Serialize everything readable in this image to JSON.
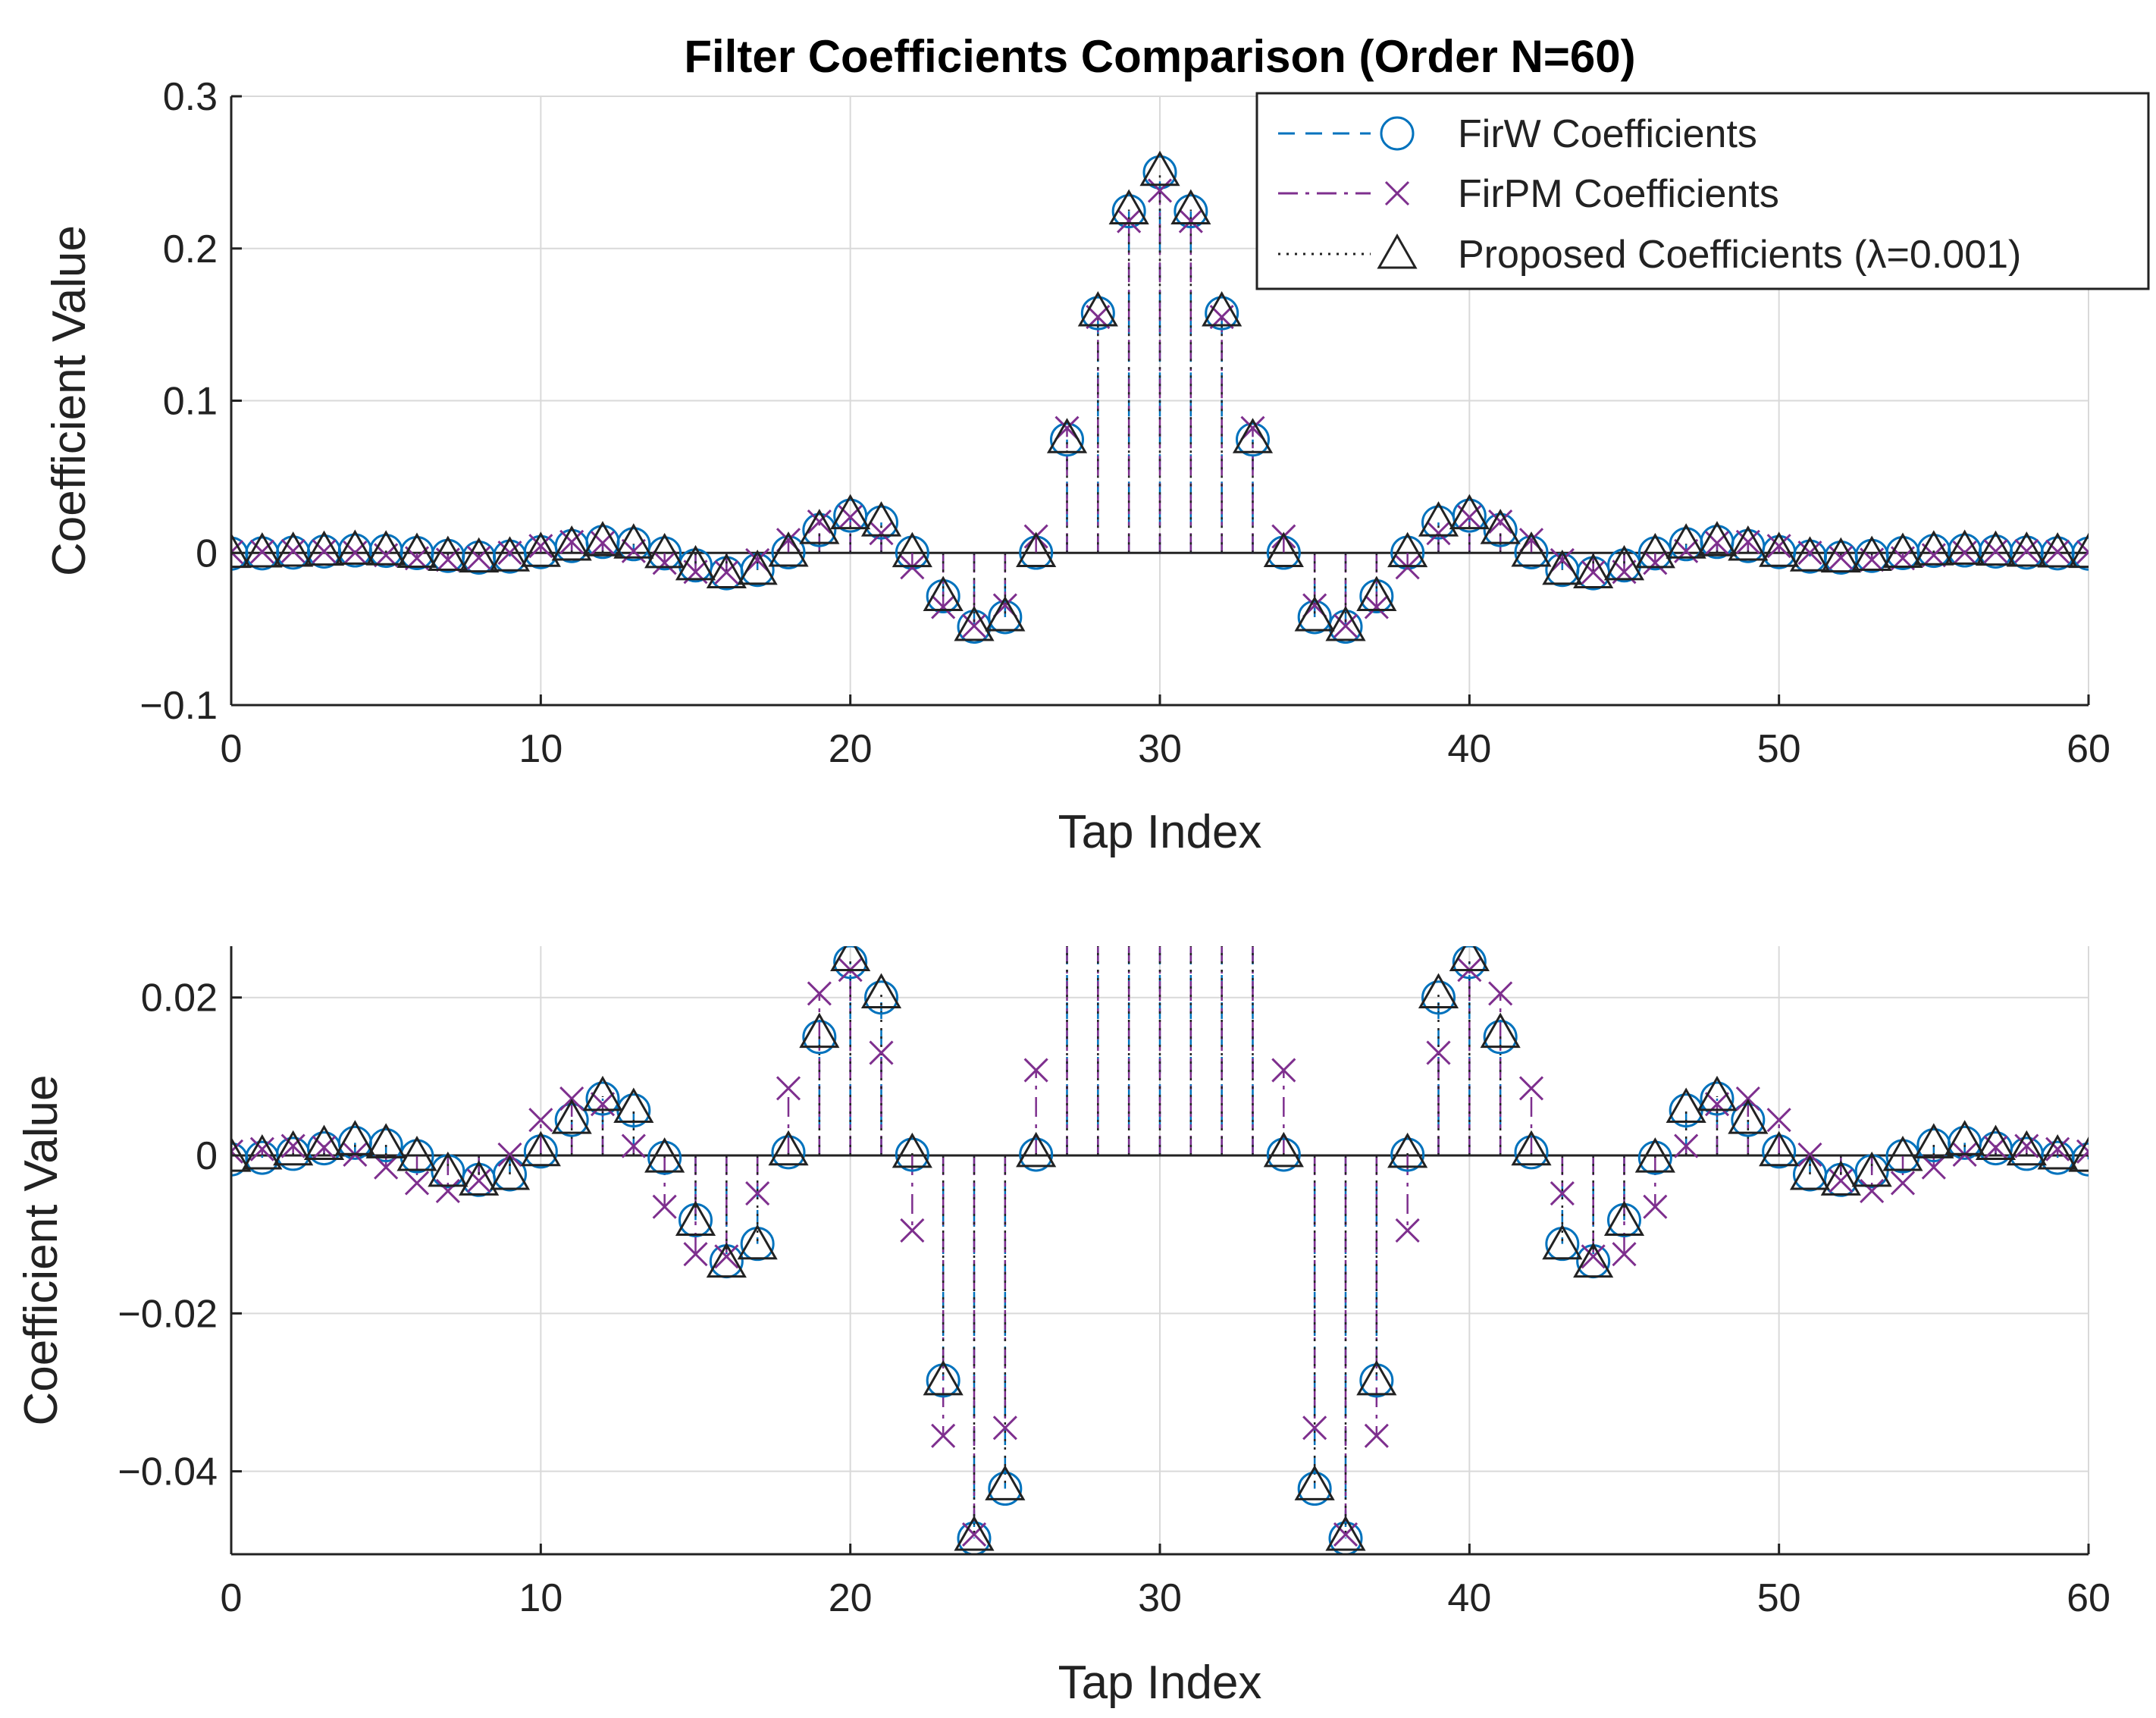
{
  "chart_data": {
    "type": "stem",
    "title": "Filter Coefficients Comparison (Order N=60)",
    "series_styles": [
      {
        "name": "FirW Coefficients",
        "color": "#0072BD",
        "marker": "circle",
        "line": "dashed"
      },
      {
        "name": "FirPM Coefficients",
        "color": "#7E2F8E",
        "marker": "x",
        "line": "dash-dot"
      },
      {
        "name": "Proposed Coefficients (λ=0.001)",
        "color": "#222222",
        "marker": "triangle",
        "line": "dotted"
      }
    ],
    "legend": {
      "placement": "top-right",
      "items": [
        "FirW Coefficients",
        "FirPM Coefficients",
        "Proposed Coefficients (λ=0.001)"
      ]
    },
    "x": [
      0,
      1,
      2,
      3,
      4,
      5,
      6,
      7,
      8,
      9,
      10,
      11,
      12,
      13,
      14,
      15,
      16,
      17,
      18,
      19,
      20,
      21,
      22,
      23,
      24,
      25,
      26,
      27,
      28,
      29,
      30,
      31,
      32,
      33,
      34,
      35,
      36,
      37,
      38,
      39,
      40,
      41,
      42,
      43,
      44,
      45,
      46,
      47,
      48,
      49,
      50,
      51,
      52,
      53,
      54,
      55,
      56,
      57,
      58,
      59,
      60
    ],
    "series": [
      {
        "name": "FirW Coefficients",
        "values": [
          -0.0005,
          -0.0003,
          0.0002,
          0.0009,
          0.0016,
          0.0013,
          -0.0001,
          -0.002,
          -0.0031,
          -0.0024,
          0.0005,
          0.0045,
          0.0072,
          0.0057,
          -0.0003,
          -0.0082,
          -0.0134,
          -0.0112,
          0.0004,
          0.015,
          0.0245,
          0.02,
          0.0001,
          -0.0285,
          -0.0485,
          -0.0422,
          0.0001,
          0.0745,
          0.1575,
          0.2245,
          0.25,
          0.2245,
          0.1575,
          0.0745,
          0.0001,
          -0.0422,
          -0.0485,
          -0.0285,
          0.0001,
          0.02,
          0.0245,
          0.015,
          0.0004,
          -0.0112,
          -0.0134,
          -0.0082,
          -0.0003,
          0.0057,
          0.0072,
          0.0045,
          0.0005,
          -0.0024,
          -0.0031,
          -0.002,
          -0.0001,
          0.0013,
          0.0016,
          0.0009,
          0.0002,
          -0.0003,
          -0.0005
        ]
      },
      {
        "name": "FirPM Coefficients",
        "values": [
          0.0005,
          0.0008,
          0.0012,
          0.001,
          0.0001,
          -0.0015,
          -0.0035,
          -0.0045,
          -0.0032,
          0.0001,
          0.0045,
          0.0072,
          0.0065,
          0.0012,
          -0.0065,
          -0.0125,
          -0.0128,
          -0.0048,
          0.0085,
          0.0205,
          0.0235,
          0.013,
          -0.0095,
          -0.0355,
          -0.048,
          -0.0345,
          0.0108,
          0.082,
          0.155,
          0.218,
          0.238,
          0.218,
          0.155,
          0.082,
          0.0108,
          -0.0345,
          -0.048,
          -0.0355,
          -0.0095,
          0.013,
          0.0235,
          0.0205,
          0.0085,
          -0.0048,
          -0.0128,
          -0.0125,
          -0.0065,
          0.0012,
          0.0065,
          0.0072,
          0.0045,
          0.0001,
          -0.0032,
          -0.0045,
          -0.0035,
          -0.0015,
          0.0001,
          0.001,
          0.0012,
          0.0008,
          0.0005
        ]
      },
      {
        "name": "Proposed Coefficients (λ=0.001)",
        "values": [
          -0.0002,
          0.0001,
          0.0006,
          0.0013,
          0.0019,
          0.0015,
          -0.0001,
          -0.0021,
          -0.0032,
          -0.0025,
          0.0005,
          0.0046,
          0.0075,
          0.006,
          -0.0003,
          -0.0083,
          -0.0136,
          -0.0113,
          0.0006,
          0.0155,
          0.0252,
          0.0205,
          0.0003,
          -0.0285,
          -0.0482,
          -0.0418,
          0.0004,
          0.0752,
          0.1585,
          0.2255,
          0.2508,
          0.2255,
          0.1585,
          0.0752,
          0.0004,
          -0.0418,
          -0.0482,
          -0.0285,
          0.0003,
          0.0205,
          0.0252,
          0.0155,
          0.0006,
          -0.0113,
          -0.0136,
          -0.0083,
          -0.0003,
          0.006,
          0.0075,
          0.0046,
          0.0005,
          -0.0025,
          -0.0032,
          -0.0021,
          -0.0001,
          0.0015,
          0.0019,
          0.0013,
          0.0006,
          0.0001,
          -0.0002
        ]
      }
    ],
    "subplots": [
      {
        "xlabel": "Tap Index",
        "ylabel": "Coefficient Value",
        "xlim": [
          0,
          60
        ],
        "ylim": [
          -0.1,
          0.3
        ],
        "xticks": [
          0,
          10,
          20,
          30,
          40,
          50,
          60
        ],
        "xtick_labels": [
          "0",
          "10",
          "20",
          "30",
          "40",
          "50",
          "60"
        ],
        "yticks": [
          -0.1,
          0,
          0.1,
          0.2,
          0.3
        ],
        "ytick_labels": [
          "−0.1",
          "0",
          "0.1",
          "0.2",
          "0.3"
        ],
        "grid": true,
        "legend": true
      },
      {
        "xlabel": "Tap Index",
        "ylabel": "Coefficient Value",
        "xlim": [
          0,
          60
        ],
        "ylim": [
          -0.0505,
          0.0265
        ],
        "xticks": [
          0,
          10,
          20,
          30,
          40,
          50,
          60
        ],
        "xtick_labels": [
          "0",
          "10",
          "20",
          "30",
          "40",
          "50",
          "60"
        ],
        "yticks": [
          -0.04,
          -0.02,
          0,
          0.02
        ],
        "ytick_labels": [
          "−0.04",
          "−0.02",
          "0",
          "0.02"
        ],
        "grid": true,
        "legend": false
      }
    ]
  }
}
